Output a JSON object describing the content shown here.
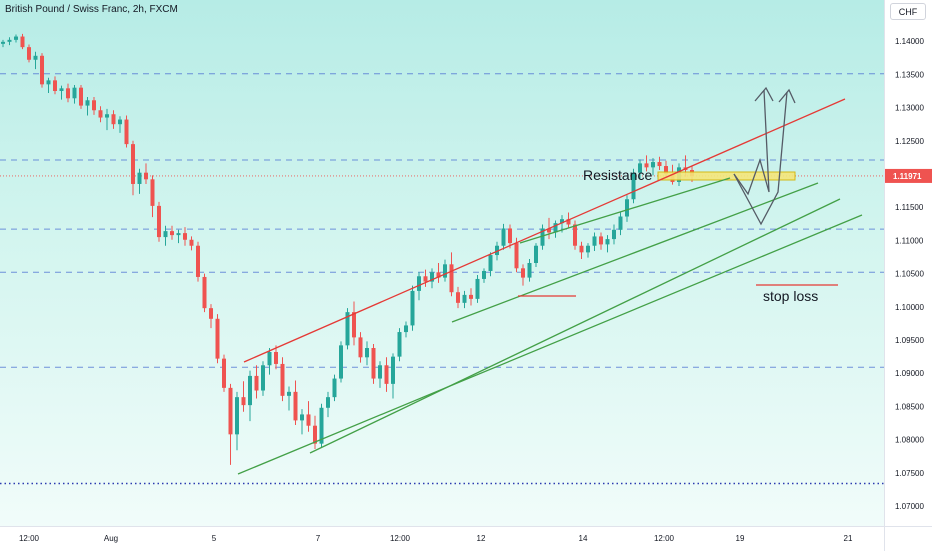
{
  "header": {
    "title": "British Pound / Swiss Franc, 2h, FXCM",
    "currency_button": "CHF"
  },
  "colors": {
    "up": "#26a69a",
    "down": "#ef5350",
    "channel_upper": "#e53935",
    "channel_lower": "#43a047",
    "level_line": "#5b7fd6",
    "zone_fill": "#f5e67a",
    "zone_stroke": "#d4b400",
    "arrow": "#555b66"
  },
  "chart_data": {
    "type": "candlestick",
    "title": "British Pound / Swiss Franc, 2h, FXCM",
    "ylim": [
      1.067,
      1.1462
    ],
    "y_ticks": [
      "1.14500",
      "1.14000",
      "1.13500",
      "1.13000",
      "1.12500",
      "1.12000",
      "1.11500",
      "1.11000",
      "1.10500",
      "1.10000",
      "1.09500",
      "1.09000",
      "1.08500",
      "1.08000",
      "1.07500",
      "1.07000"
    ],
    "x_ticks": [
      "12:00",
      "Aug",
      "5",
      "7",
      "12:00",
      "12",
      "14",
      "12:00",
      "19",
      "21"
    ],
    "current_price": "1.11971",
    "horizontal_levels": [
      1.1351,
      1.1221,
      1.1117,
      1.1052,
      1.0909
    ],
    "bottom_dotted_level": 1.0734,
    "annotations": {
      "resistance": "Resistance",
      "stop_loss": "stop loss"
    },
    "candles": [
      [
        1.1396,
        1.1402,
        1.1391,
        1.1399
      ],
      [
        1.1399,
        1.1406,
        1.1394,
        1.1402
      ],
      [
        1.1402,
        1.141,
        1.1398,
        1.1407
      ],
      [
        1.1407,
        1.1411,
        1.1388,
        1.1391
      ],
      [
        1.1391,
        1.1395,
        1.1368,
        1.1372
      ],
      [
        1.1372,
        1.1384,
        1.1358,
        1.1378
      ],
      [
        1.1378,
        1.1382,
        1.133,
        1.1335
      ],
      [
        1.1335,
        1.1345,
        1.1322,
        1.1341
      ],
      [
        1.1341,
        1.1347,
        1.132,
        1.1325
      ],
      [
        1.1325,
        1.1333,
        1.1312,
        1.1329
      ],
      [
        1.1329,
        1.1336,
        1.1308,
        1.1314
      ],
      [
        1.1314,
        1.1334,
        1.1306,
        1.133
      ],
      [
        1.133,
        1.1334,
        1.1298,
        1.1303
      ],
      [
        1.1303,
        1.1316,
        1.1288,
        1.1311
      ],
      [
        1.1311,
        1.1316,
        1.1289,
        1.1296
      ],
      [
        1.1296,
        1.1302,
        1.1278,
        1.1285
      ],
      [
        1.1285,
        1.1298,
        1.1266,
        1.129
      ],
      [
        1.129,
        1.1296,
        1.1268,
        1.1275
      ],
      [
        1.1275,
        1.1287,
        1.1262,
        1.1282
      ],
      [
        1.1282,
        1.1288,
        1.124,
        1.1245
      ],
      [
        1.1245,
        1.125,
        1.1168,
        1.1185
      ],
      [
        1.1185,
        1.1208,
        1.117,
        1.1202
      ],
      [
        1.1202,
        1.1216,
        1.1185,
        1.1192
      ],
      [
        1.1192,
        1.1198,
        1.1135,
        1.1152
      ],
      [
        1.1152,
        1.1158,
        1.1098,
        1.1105
      ],
      [
        1.1105,
        1.1122,
        1.1092,
        1.1114
      ],
      [
        1.1114,
        1.1122,
        1.1101,
        1.1108
      ],
      [
        1.1108,
        1.1116,
        1.1096,
        1.1111
      ],
      [
        1.1111,
        1.112,
        1.1092,
        1.1101
      ],
      [
        1.1101,
        1.1106,
        1.1085,
        1.1092
      ],
      [
        1.1092,
        1.1098,
        1.1038,
        1.1045
      ],
      [
        1.1045,
        1.105,
        1.0992,
        1.0998
      ],
      [
        1.0998,
        1.1004,
        1.0968,
        1.0982
      ],
      [
        1.0982,
        1.0989,
        1.0915,
        1.0922
      ],
      [
        1.0922,
        1.0928,
        1.0872,
        1.0878
      ],
      [
        1.0878,
        1.0884,
        1.0762,
        1.0808
      ],
      [
        1.0808,
        1.0872,
        1.0784,
        1.0864
      ],
      [
        1.0864,
        1.0888,
        1.0842,
        1.0852
      ],
      [
        1.0852,
        1.0904,
        1.0828,
        1.0896
      ],
      [
        1.0896,
        1.0912,
        1.0862,
        1.0874
      ],
      [
        1.0874,
        1.0918,
        1.0866,
        1.0912
      ],
      [
        1.0912,
        1.0938,
        1.0898,
        1.0932
      ],
      [
        1.0932,
        1.0942,
        1.0906,
        1.0914
      ],
      [
        1.0914,
        1.0924,
        1.0858,
        1.0866
      ],
      [
        1.0866,
        1.088,
        1.0844,
        1.0872
      ],
      [
        1.0872,
        1.0889,
        1.0822,
        1.0829
      ],
      [
        1.0829,
        1.0846,
        1.0808,
        1.0838
      ],
      [
        1.0838,
        1.0858,
        1.0812,
        1.0821
      ],
      [
        1.0821,
        1.0836,
        1.0786,
        1.0794
      ],
      [
        1.0794,
        1.0854,
        1.0788,
        1.0848
      ],
      [
        1.0848,
        1.0872,
        1.0834,
        1.0864
      ],
      [
        1.0864,
        1.0898,
        1.0858,
        1.0892
      ],
      [
        1.0892,
        1.0948,
        1.0886,
        1.0942
      ],
      [
        1.0942,
        1.0998,
        1.0936,
        1.0992
      ],
      [
        1.0992,
        1.1008,
        1.0942,
        1.0954
      ],
      [
        1.0954,
        1.0962,
        1.0916,
        1.0924
      ],
      [
        1.0924,
        1.0948,
        1.0912,
        1.0938
      ],
      [
        1.0938,
        1.0944,
        1.0884,
        1.0892
      ],
      [
        1.0892,
        1.0918,
        1.0878,
        1.0912
      ],
      [
        1.0912,
        1.0924,
        1.0872,
        1.0884
      ],
      [
        1.0884,
        1.093,
        1.0862,
        1.0925
      ],
      [
        1.0925,
        1.0968,
        1.0918,
        1.0962
      ],
      [
        1.0962,
        1.0978,
        1.0954,
        1.0972
      ],
      [
        1.0972,
        1.1032,
        1.0964,
        1.1024
      ],
      [
        1.1024,
        1.1052,
        1.101,
        1.1046
      ],
      [
        1.1046,
        1.1056,
        1.103,
        1.1038
      ],
      [
        1.1038,
        1.1058,
        1.1028,
        1.1052
      ],
      [
        1.1052,
        1.1066,
        1.1036,
        1.1044
      ],
      [
        1.1044,
        1.1071,
        1.1038,
        1.1064
      ],
      [
        1.1064,
        1.1082,
        1.1016,
        1.1022
      ],
      [
        1.1022,
        1.103,
        1.0998,
        1.1006
      ],
      [
        1.1006,
        1.1024,
        1.0998,
        1.1018
      ],
      [
        1.1018,
        1.1028,
        1.1002,
        1.1012
      ],
      [
        1.1012,
        1.1048,
        1.1006,
        1.1042
      ],
      [
        1.1042,
        1.1058,
        1.1036,
        1.1054
      ],
      [
        1.1054,
        1.1082,
        1.1046,
        1.1078
      ],
      [
        1.1078,
        1.1098,
        1.107,
        1.1092
      ],
      [
        1.1092,
        1.1125,
        1.1086,
        1.1118
      ],
      [
        1.1118,
        1.1124,
        1.1088,
        1.1096
      ],
      [
        1.1096,
        1.1104,
        1.1052,
        1.1058
      ],
      [
        1.1058,
        1.1064,
        1.1032,
        1.1044
      ],
      [
        1.1044,
        1.1072,
        1.1038,
        1.1066
      ],
      [
        1.1066,
        1.1096,
        1.106,
        1.1092
      ],
      [
        1.1092,
        1.1124,
        1.1086,
        1.1118
      ],
      [
        1.1118,
        1.1134,
        1.1102,
        1.1112
      ],
      [
        1.1112,
        1.113,
        1.1104,
        1.1126
      ],
      [
        1.1126,
        1.1138,
        1.1112,
        1.1132
      ],
      [
        1.1132,
        1.1142,
        1.1118,
        1.1124
      ],
      [
        1.1124,
        1.113,
        1.1086,
        1.1092
      ],
      [
        1.1092,
        1.1098,
        1.1072,
        1.1082
      ],
      [
        1.1082,
        1.1096,
        1.1074,
        1.1092
      ],
      [
        1.1092,
        1.1112,
        1.1084,
        1.1106
      ],
      [
        1.1106,
        1.1112,
        1.1086,
        1.1094
      ],
      [
        1.1094,
        1.1108,
        1.1082,
        1.1102
      ],
      [
        1.1102,
        1.1124,
        1.1094,
        1.1116
      ],
      [
        1.1116,
        1.1142,
        1.1108,
        1.1136
      ],
      [
        1.1136,
        1.1168,
        1.1128,
        1.1162
      ],
      [
        1.1162,
        1.1208,
        1.1156,
        1.1202
      ],
      [
        1.1202,
        1.1222,
        1.1192,
        1.1216
      ],
      [
        1.1216,
        1.1228,
        1.1204,
        1.121
      ],
      [
        1.121,
        1.1224,
        1.1198,
        1.1218
      ],
      [
        1.1218,
        1.1226,
        1.1206,
        1.1212
      ],
      [
        1.1212,
        1.122,
        1.1194,
        1.12
      ],
      [
        1.12,
        1.1214,
        1.1184,
        1.1188
      ],
      [
        1.1188,
        1.1216,
        1.1182,
        1.121
      ],
      [
        1.121,
        1.1228,
        1.1196,
        1.1206
      ],
      [
        1.1206,
        1.1212,
        1.1188,
        1.1197
      ]
    ]
  }
}
